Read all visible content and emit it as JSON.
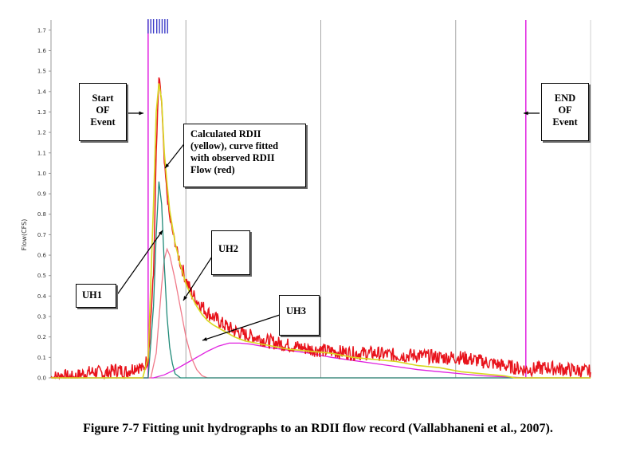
{
  "chart_data": {
    "type": "line",
    "title": "",
    "xlabel": "",
    "ylabel": "Flow(CFS)",
    "ylim": [
      0,
      1.75
    ],
    "yticks": [
      "0.0",
      "0.1",
      "0.2",
      "0.3",
      "0.4",
      "0.5",
      "0.6",
      "0.7",
      "0.8",
      "0.9",
      "1.0",
      "1.1",
      "1.2",
      "1.3",
      "1.4",
      "1.5",
      "1.6",
      "1.7"
    ],
    "xlim": [
      0,
      100
    ],
    "grid": "vertical only",
    "event_start_x": 18,
    "event_end_x": 88,
    "rainfall_marks_x": [
      18,
      18.5,
      19,
      19.6,
      20.1,
      20.6,
      21.1,
      21.6
    ],
    "series": [
      {
        "name": "observed RDII Flow",
        "color": "#e8141c",
        "x": [
          0,
          2,
          4,
          6,
          8,
          10,
          12,
          14,
          16,
          17,
          18,
          19,
          19.5,
          20,
          20.5,
          21,
          21.5,
          22,
          23,
          24,
          25,
          26,
          27,
          28,
          29,
          30,
          32,
          34,
          36,
          38,
          40,
          44,
          48,
          52,
          56,
          60,
          64,
          68,
          72,
          76,
          80,
          84,
          88,
          92,
          96,
          100
        ],
        "y": [
          0.0,
          0.01,
          0.0,
          0.02,
          0.03,
          0.02,
          0.04,
          0.03,
          0.06,
          0.04,
          0.1,
          0.5,
          1.1,
          1.47,
          1.35,
          1.05,
          0.9,
          0.78,
          0.66,
          0.56,
          0.48,
          0.42,
          0.38,
          0.35,
          0.32,
          0.3,
          0.26,
          0.23,
          0.21,
          0.2,
          0.18,
          0.16,
          0.14,
          0.13,
          0.12,
          0.12,
          0.11,
          0.11,
          0.1,
          0.1,
          0.08,
          0.06,
          0.04,
          0.05,
          0.04,
          0.03
        ]
      },
      {
        "name": "Calculated RDII",
        "color": "#d8d820",
        "x": [
          0,
          17,
          18,
          19,
          19.5,
          20,
          20.5,
          21,
          21.5,
          22,
          23,
          24,
          25,
          26,
          27,
          28,
          29,
          30,
          32,
          34,
          36,
          38,
          40,
          44,
          48,
          52,
          56,
          60,
          64,
          68,
          72,
          76,
          80,
          84,
          86,
          88,
          100
        ],
        "y": [
          0,
          0,
          0.1,
          0.85,
          1.3,
          1.44,
          1.36,
          1.1,
          0.95,
          0.82,
          0.66,
          0.55,
          0.46,
          0.4,
          0.35,
          0.31,
          0.28,
          0.26,
          0.23,
          0.2,
          0.18,
          0.17,
          0.16,
          0.14,
          0.13,
          0.12,
          0.1,
          0.09,
          0.08,
          0.06,
          0.05,
          0.03,
          0.02,
          0.01,
          0.0,
          0.0,
          0.0
        ]
      },
      {
        "name": "UH1",
        "color": "#1f8a78",
        "x": [
          0,
          18,
          19,
          19.5,
          20,
          20.5,
          21,
          21.5,
          22,
          22.5,
          23,
          23.5,
          24,
          25,
          100
        ],
        "y": [
          0,
          0,
          0.35,
          0.7,
          0.96,
          0.85,
          0.55,
          0.3,
          0.15,
          0.07,
          0.02,
          0.01,
          0,
          0,
          0
        ]
      },
      {
        "name": "UH2",
        "color": "#f07a8a",
        "x": [
          0,
          18.5,
          19.5,
          20.5,
          21,
          21.5,
          22,
          23,
          24,
          25,
          26,
          27,
          28,
          29,
          100
        ],
        "y": [
          0,
          0,
          0.12,
          0.45,
          0.58,
          0.63,
          0.6,
          0.48,
          0.34,
          0.2,
          0.1,
          0.04,
          0.01,
          0,
          0
        ]
      },
      {
        "name": "UH3",
        "color": "#e020e0",
        "x": [
          0,
          19,
          21,
          23,
          25,
          27,
          29,
          31,
          33,
          35,
          37,
          40,
          44,
          48,
          52,
          56,
          60,
          64,
          68,
          72,
          76,
          80,
          84,
          88,
          100
        ],
        "y": [
          0,
          0,
          0.015,
          0.04,
          0.07,
          0.1,
          0.13,
          0.155,
          0.17,
          0.17,
          0.165,
          0.15,
          0.135,
          0.12,
          0.1,
          0.085,
          0.07,
          0.055,
          0.04,
          0.03,
          0.02,
          0.01,
          0.005,
          0,
          0
        ]
      }
    ],
    "annotations": [
      {
        "id": "start",
        "lines": [
          "Start",
          "OF",
          "Event"
        ]
      },
      {
        "id": "end",
        "lines": [
          "END",
          "OF",
          "Event"
        ]
      },
      {
        "id": "calc",
        "lines": [
          "Calculated RDII",
          "(yellow), curve fitted",
          "with observed RDII",
          "Flow (red)"
        ]
      },
      {
        "id": "uh1",
        "lines": [
          "UH1"
        ]
      },
      {
        "id": "uh2",
        "lines": [
          "UH2"
        ]
      },
      {
        "id": "uh3",
        "lines": [
          "UH3"
        ]
      }
    ]
  },
  "caption": "Figure 7-7 Fitting unit hydrographs to an RDII flow record (Vallabhaneni et al., 2007)."
}
